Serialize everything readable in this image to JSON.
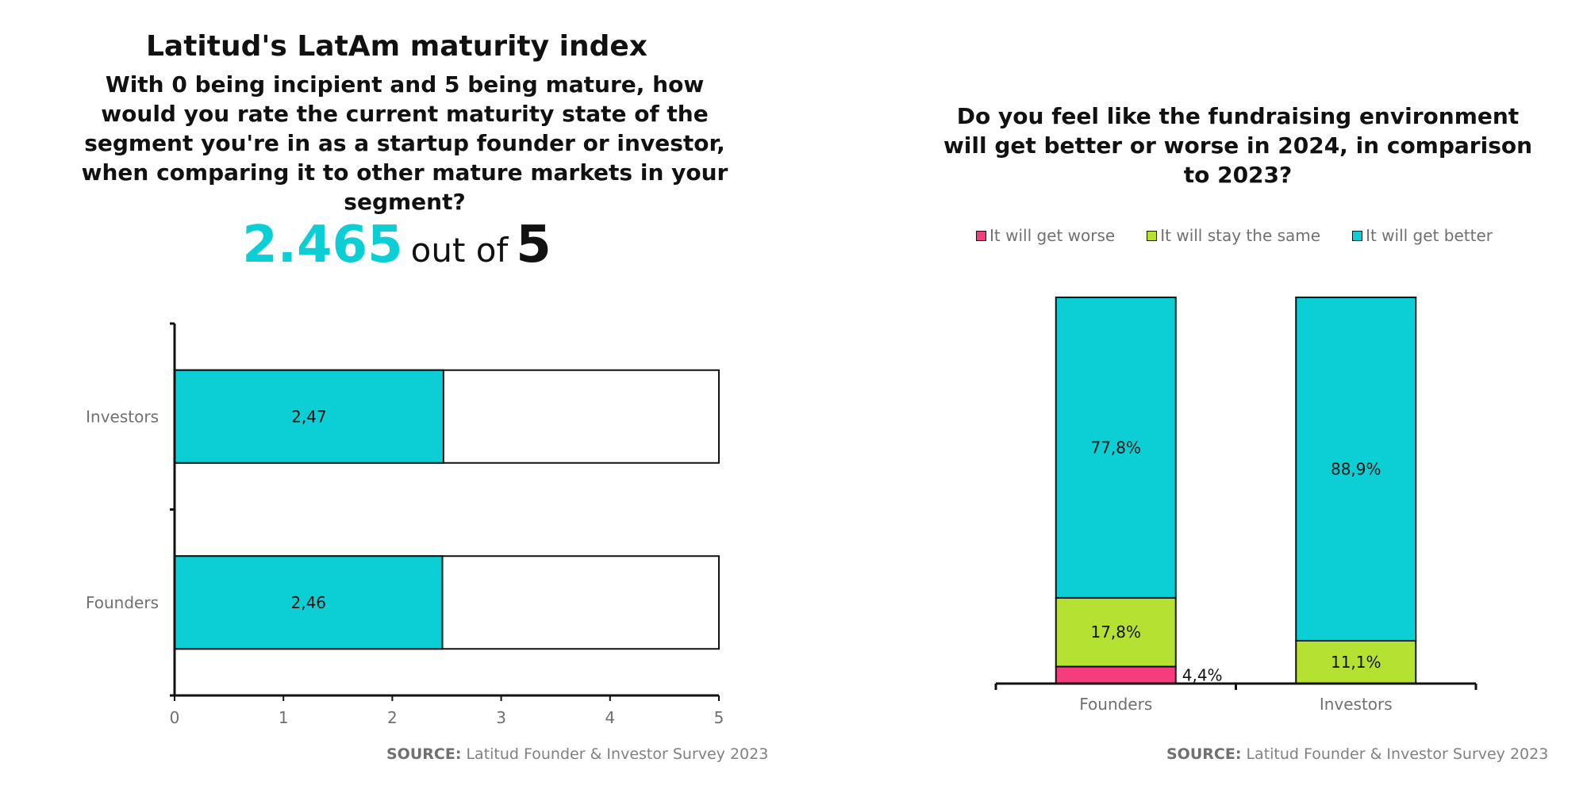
{
  "left": {
    "title": "Latitud's LatAm maturity index",
    "question": "With 0 being incipient and 5 being mature, how would you rate the current maturity state of the segment you're in as a startup founder or investor, when comparing it to other mature markets in your segment?",
    "score_value": "2.465",
    "score_mid": "out of",
    "score_max": "5",
    "source_label": "SOURCE:",
    "source_text": "Latitud Founder & Investor Survey 2023"
  },
  "right": {
    "question": "Do you feel like the fundraising environment will get better or worse in 2024, in comparison to 2023?",
    "source_label": "SOURCE:",
    "source_text": "Latitud Founder & Investor Survey 2023"
  },
  "colors": {
    "teal": "#0bcfd4",
    "lime": "#b5e133",
    "pink": "#f43c7f"
  },
  "chart_data": [
    {
      "type": "bar",
      "orientation": "horizontal",
      "categories": [
        "Investors",
        "Founders"
      ],
      "values": [
        2.47,
        2.46
      ],
      "value_labels": [
        "2,47",
        "2,46"
      ],
      "xlim": [
        0,
        5
      ],
      "xticks": [
        "0",
        "1",
        "2",
        "3",
        "4",
        "5"
      ],
      "bar_color": "#0bcfd4",
      "background_bar_max": 5
    },
    {
      "type": "bar",
      "stacked": true,
      "categories": [
        "Founders",
        "Investors"
      ],
      "series": [
        {
          "name": "It will get worse",
          "color": "#f43c7f",
          "values": [
            4.4,
            0
          ],
          "labels": [
            "4,4%",
            ""
          ]
        },
        {
          "name": "It will stay the same",
          "color": "#b5e133",
          "values": [
            17.8,
            11.1
          ],
          "labels": [
            "17,8%",
            "11,1%"
          ]
        },
        {
          "name": "It will get better",
          "color": "#0bcfd4",
          "values": [
            77.8,
            88.9
          ],
          "labels": [
            "77,8%",
            "88,9%"
          ]
        }
      ],
      "ylim": [
        0,
        100
      ],
      "legend": "top"
    }
  ]
}
